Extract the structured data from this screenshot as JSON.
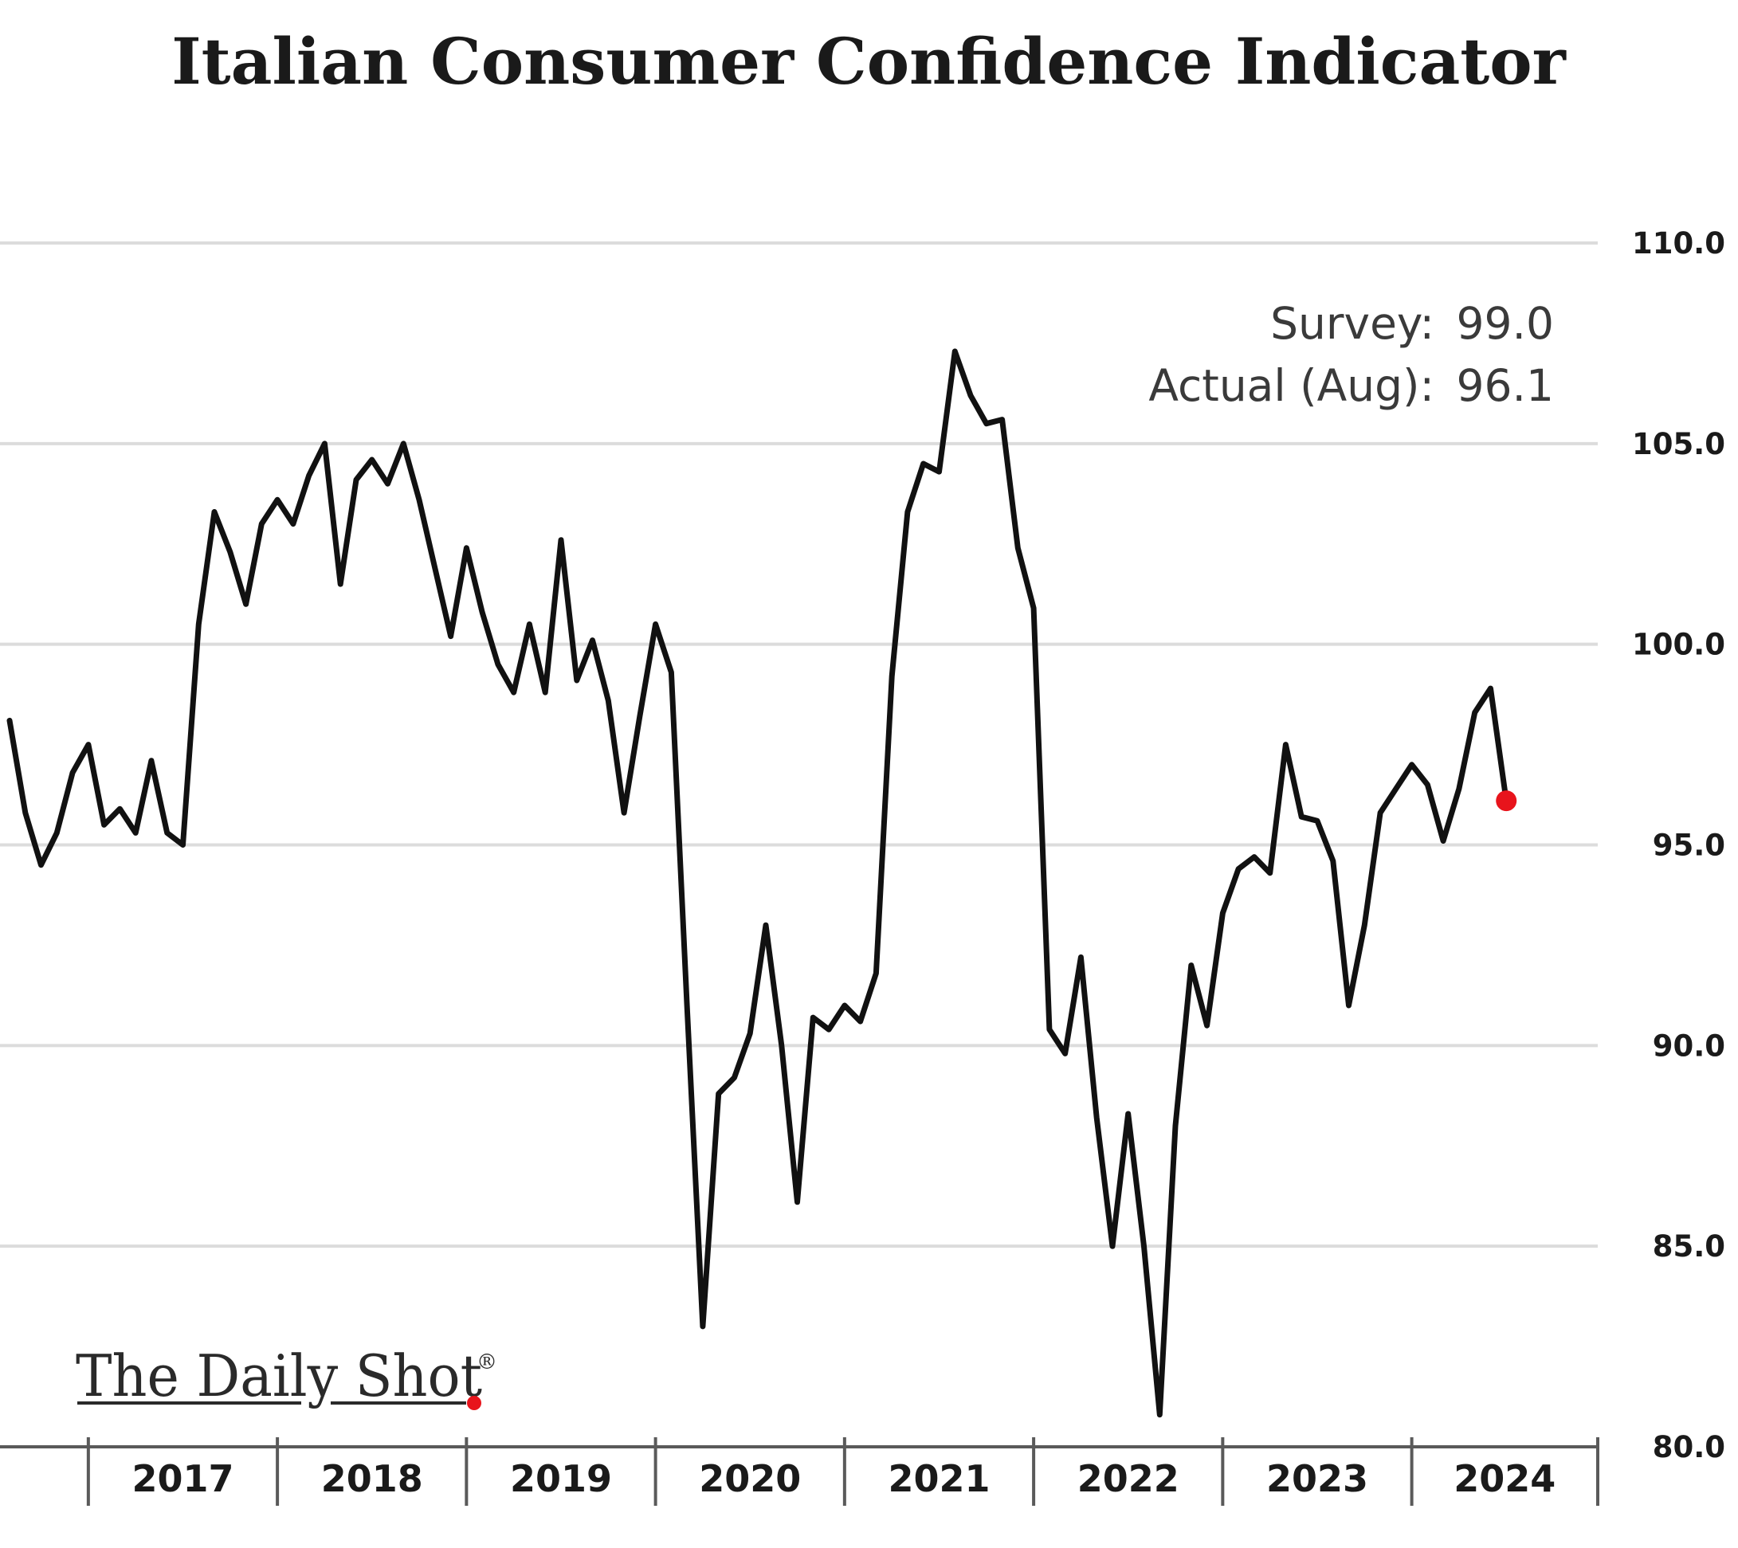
{
  "chart_data": {
    "type": "line",
    "title": "Italian Consumer Confidence Indicator",
    "xlabel": "",
    "ylabel": "",
    "ylim": [
      80,
      110
    ],
    "yticks": [
      "110.0",
      "105.0",
      "100.0",
      "95.0",
      "90.0",
      "85.0",
      "80.0"
    ],
    "xticks": [
      "2017",
      "2018",
      "2019",
      "2020",
      "2021",
      "2022",
      "2023",
      "2024"
    ],
    "x_start": "2016-08",
    "x_end": "2024-08",
    "grid": true,
    "y_axis_side": "right",
    "series": [
      {
        "color": "#111111",
        "values": [
          98.1,
          95.8,
          94.5,
          95.3,
          96.8,
          97.5,
          95.5,
          95.9,
          95.3,
          97.1,
          95.3,
          95.0,
          100.5,
          103.3,
          102.3,
          101.0,
          103.0,
          103.6,
          103.0,
          104.2,
          105.0,
          101.5,
          104.1,
          104.6,
          104.0,
          105.0,
          103.6,
          101.9,
          100.2,
          102.4,
          100.8,
          99.5,
          98.8,
          100.5,
          98.8,
          102.6,
          99.1,
          100.1,
          98.6,
          95.8,
          98.2,
          100.5,
          99.3,
          91.0,
          83.0,
          88.8,
          89.2,
          90.3,
          93.0,
          90.0,
          86.1,
          90.7,
          90.4,
          91.0,
          90.6,
          91.8,
          99.2,
          103.3,
          104.5,
          104.3,
          107.3,
          106.2,
          105.5,
          105.6,
          102.4,
          100.9,
          90.4,
          89.8,
          92.2,
          88.2,
          85.0,
          88.3,
          85.0,
          80.8,
          88.0,
          92.0,
          90.5,
          93.3,
          94.4,
          94.7,
          94.3,
          97.5,
          95.7,
          95.6,
          94.6,
          91.0,
          93.0,
          95.8,
          96.4,
          97.0,
          96.5,
          95.1,
          96.4,
          98.3,
          98.9,
          96.1
        ],
        "last_point_color": "#e8141c"
      }
    ],
    "annotations": {
      "survey_label": "Survey:",
      "survey_value": "99.0",
      "actual_label": "Actual (Aug):",
      "actual_value": "96.1"
    }
  },
  "branding": {
    "logo_text": "The Daily Shot",
    "logo_mark": "®",
    "accent_color": "#e8141c"
  }
}
